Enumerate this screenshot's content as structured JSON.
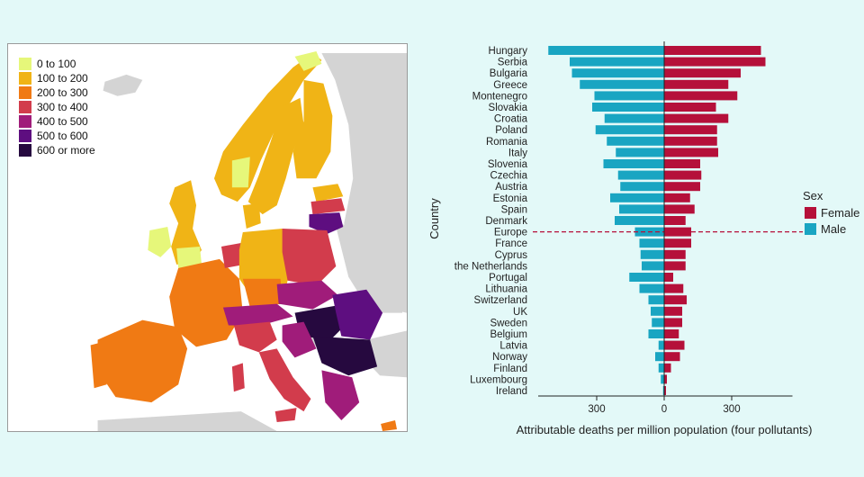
{
  "map_panel": {
    "legend": [
      {
        "label": "0 to 100",
        "color": "#e6f77a"
      },
      {
        "label": "100 to 200",
        "color": "#f0b416"
      },
      {
        "label": "200 to 300",
        "color": "#f07a14"
      },
      {
        "label": "300 to 400",
        "color": "#d23c4c"
      },
      {
        "label": "400 to 500",
        "color": "#a01c7a"
      },
      {
        "label": "500 to 600",
        "color": "#5e0e80"
      },
      {
        "label": "600 or more",
        "color": "#26093f"
      }
    ],
    "non_eu_color": "#d4d4d4"
  },
  "chart_data": {
    "type": "bar",
    "orientation": "horizontal-diverging",
    "categories": [
      "Hungary",
      "Serbia",
      "Bulgaria",
      "Greece",
      "Montenegro",
      "Slovakia",
      "Croatia",
      "Poland",
      "Romania",
      "Italy",
      "Slovenia",
      "Czechia",
      "Austria",
      "Estonia",
      "Spain",
      "Denmark",
      "Europe",
      "France",
      "Cyprus",
      "the Netherlands",
      "Portugal",
      "Lithuania",
      "Switzerland",
      "UK",
      "Sweden",
      "Belgium",
      "Latvia",
      "Norway",
      "Finland",
      "Luxembourg",
      "Ireland"
    ],
    "series": [
      {
        "name": "Female",
        "color": "#b5103a",
        "side": "right",
        "values": [
          430,
          450,
          340,
          285,
          325,
          230,
          285,
          235,
          235,
          240,
          160,
          165,
          160,
          115,
          135,
          95,
          120,
          120,
          95,
          95,
          40,
          85,
          100,
          80,
          80,
          65,
          90,
          70,
          30,
          12,
          8
        ]
      },
      {
        "name": "Male",
        "color": "#19a5c2",
        "side": "left",
        "values": [
          515,
          420,
          410,
          375,
          310,
          320,
          265,
          305,
          255,
          215,
          270,
          205,
          195,
          240,
          200,
          220,
          130,
          110,
          105,
          100,
          155,
          110,
          70,
          60,
          55,
          70,
          25,
          40,
          25,
          15,
          5
        ]
      }
    ],
    "xlabel": "Attributable deaths per million population (four pollutants)",
    "ylabel": "Country",
    "x_ticks": [
      300,
      0,
      300
    ],
    "x_tick_values": [
      -300,
      0,
      300
    ],
    "xlim": [
      -560,
      570
    ],
    "reference_category": "Europe",
    "legend": {
      "title": "Sex",
      "position": "right",
      "entries": [
        "Female",
        "Male"
      ]
    }
  }
}
